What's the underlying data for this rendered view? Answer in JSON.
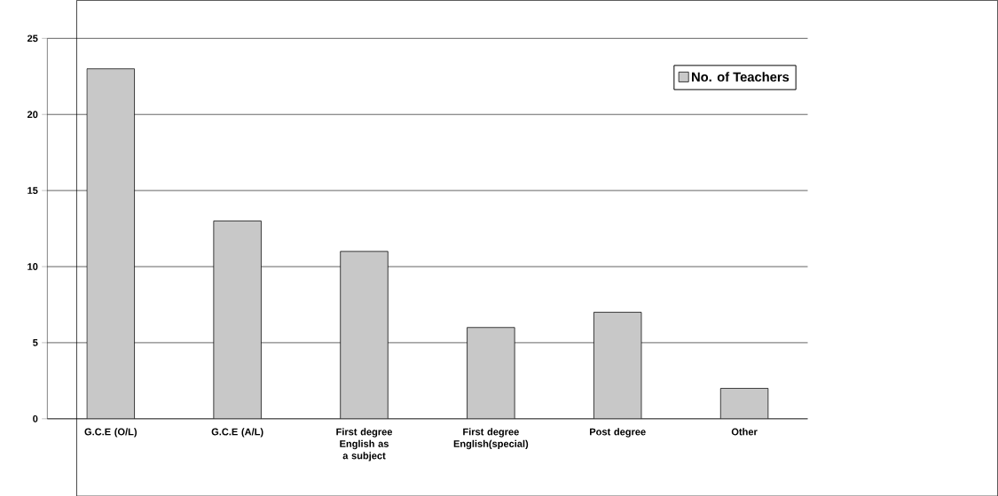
{
  "chart_data": {
    "type": "bar",
    "categories": [
      "G.C.E (O/L)",
      "G.C.E (A/L)",
      "First degree English as a subject",
      "First degree English(special)",
      "Post degree",
      "Other"
    ],
    "series": [
      {
        "name": "No. of Teachers",
        "color": "#c8c8c8",
        "values": [
          23,
          13,
          11,
          6,
          7,
          2
        ]
      }
    ],
    "ylim": [
      0,
      25
    ],
    "yticks": [
      0,
      5,
      10,
      15,
      20,
      25
    ],
    "grid": "y",
    "legend": "top right"
  }
}
